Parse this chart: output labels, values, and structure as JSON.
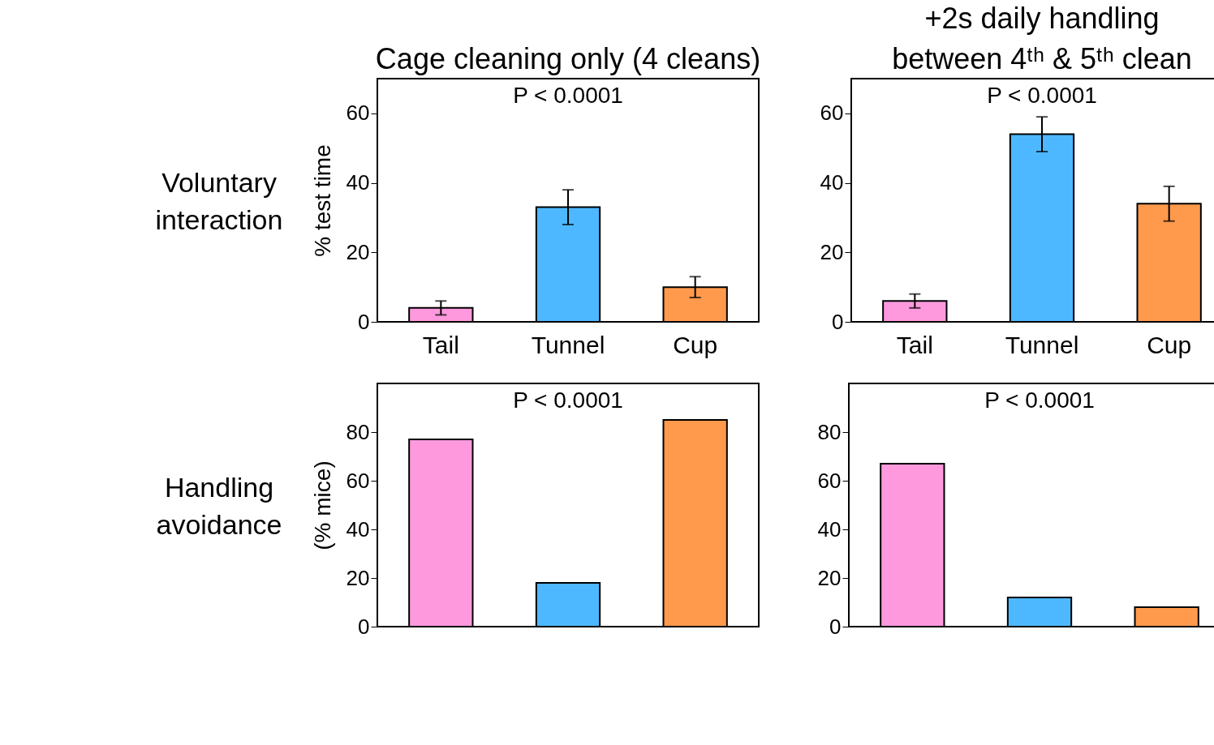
{
  "chart_data": [
    {
      "type": "bar",
      "title": "Cage cleaning only (4 cleans)",
      "ylabel": "% test time",
      "categories": [
        "Tail",
        "Tunnel",
        "Cup"
      ],
      "values": [
        4,
        33,
        10
      ],
      "errors": [
        2,
        5,
        3
      ],
      "colors": [
        "#ff99dd",
        "#4db8ff",
        "#ff9a4d"
      ],
      "ylim": [
        0,
        70
      ],
      "yticks": [
        0,
        20,
        40,
        60
      ],
      "annotations": [
        "P < 0.0001",
        "Voluntary\ninteraction"
      ]
    },
    {
      "type": "bar",
      "title": "+2s daily handling\nbetween 4ᵗʰ & 5ᵗʰ clean",
      "categories": [
        "Tail",
        "Tunnel",
        "Cup"
      ],
      "values": [
        6,
        54,
        34
      ],
      "errors": [
        2,
        5,
        5
      ],
      "colors": [
        "#ff99dd",
        "#4db8ff",
        "#ff9a4d"
      ],
      "ylim": [
        0,
        70
      ],
      "yticks": [
        0,
        20,
        40,
        60
      ],
      "annotations": [
        "P < 0.0001"
      ]
    },
    {
      "type": "bar",
      "ylabel": "(% mice)",
      "categories": [
        null,
        null,
        null
      ],
      "values": [
        77,
        18,
        85
      ],
      "colors": [
        "#ff99dd",
        "#4db8ff",
        "#ff9a4d"
      ],
      "ylim": [
        0,
        100
      ],
      "yticks": [
        0,
        20,
        40,
        60,
        80
      ],
      "annotations": [
        "P < 0.0001",
        "Handling\navoidance"
      ]
    },
    {
      "type": "bar",
      "categories": [
        null,
        null,
        null
      ],
      "values": [
        67,
        12,
        8
      ],
      "colors": [
        "#ff99dd",
        "#4db8ff",
        "#ff9a4d"
      ],
      "ylim": [
        0,
        100
      ],
      "yticks": [
        0,
        20,
        40,
        60,
        80
      ],
      "annotations": [
        "P < 0.0001"
      ]
    }
  ]
}
